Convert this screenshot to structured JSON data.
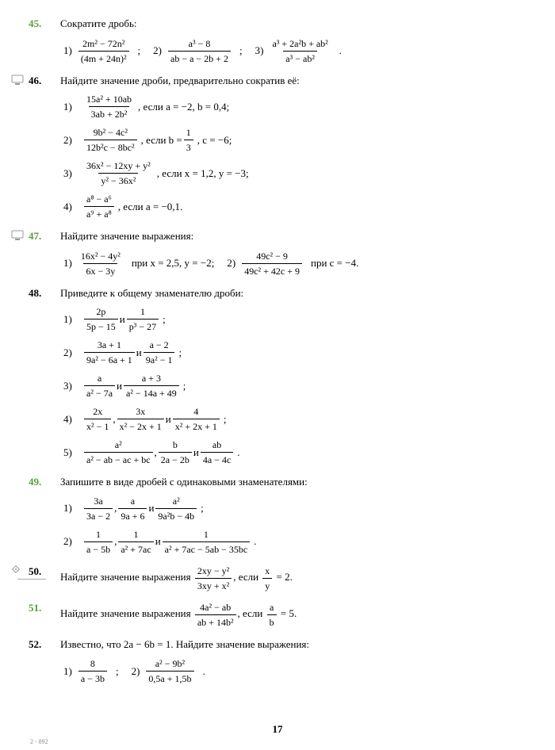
{
  "page_number": "17",
  "footer": "2 - 892",
  "problems": [
    {
      "num": "45.",
      "color": "green",
      "title": "Сократите дробь:",
      "inline": true,
      "subs": [
        {
          "idx": "1)",
          "num": "2m² − 72n²",
          "den": "(4m + 24n)²",
          "tail": ";"
        },
        {
          "idx": "2)",
          "num": "a³ − 8",
          "den": "ab − a − 2b + 2",
          "tail": ";"
        },
        {
          "idx": "3)",
          "num": "a³ + 2a²b + ab²",
          "den": "a³ − ab²",
          "tail": "."
        }
      ]
    },
    {
      "num": "46.",
      "color": "black",
      "monitor": true,
      "title": "Найдите значение дроби, предварительно сократив её:",
      "subs": [
        {
          "idx": "1)",
          "num": "15a² + 10ab",
          "den": "3ab + 2b²",
          "tail": ", если a = −2,  b = 0,4;"
        },
        {
          "idx": "2)",
          "num": "9b² − 4c²",
          "den": "12b²c − 8bc²",
          "tail": ", если  b = ",
          "frac2": {
            "num": "1",
            "den": "3"
          },
          "tail2": ",  c = −6;"
        },
        {
          "idx": "3)",
          "num": "36x² − 12xy + y²",
          "den": "y² − 36x²",
          "tail": ", если  x = 1,2,  y = −3;"
        },
        {
          "idx": "4)",
          "num": "a⁸ − a⁶",
          "den": "a⁹ + a⁸",
          "tail": ", если  a = −0,1."
        }
      ]
    },
    {
      "num": "47.",
      "color": "green",
      "monitor": true,
      "title": "Найдите значение выражения:",
      "inline": true,
      "subs": [
        {
          "idx": "1)",
          "num": "16x² − 4y²",
          "den": "6x − 3y",
          "tail": " при x = 2,5,  y = −2;"
        },
        {
          "idx": "2)",
          "num": "49c² − 9",
          "den": "49c² + 42c + 9",
          "tail": " при c = −4."
        }
      ]
    },
    {
      "num": "48.",
      "color": "black",
      "title": "Приведите к общему знаменателю дроби:",
      "subs": [
        {
          "idx": "1)",
          "fracs": [
            {
              "num": "2p",
              "den": "5p − 15"
            },
            {
              "num": "1",
              "den": "p³ − 27"
            }
          ],
          "joins": [
            "  и  "
          ],
          "tail": ";"
        },
        {
          "idx": "2)",
          "fracs": [
            {
              "num": "3a + 1",
              "den": "9a² − 6a + 1"
            },
            {
              "num": "a − 2",
              "den": "9a² − 1"
            }
          ],
          "joins": [
            "  и  "
          ],
          "tail": ";"
        },
        {
          "idx": "3)",
          "fracs": [
            {
              "num": "a",
              "den": "a² − 7a"
            },
            {
              "num": "a + 3",
              "den": "a² − 14a + 49"
            }
          ],
          "joins": [
            "  и  "
          ],
          "tail": ";"
        },
        {
          "idx": "4)",
          "fracs": [
            {
              "num": "2x",
              "den": "x² − 1"
            },
            {
              "num": "3x",
              "den": "x² − 2x + 1"
            },
            {
              "num": "4",
              "den": "x² + 2x + 1"
            }
          ],
          "joins": [
            ",  ",
            "  и  "
          ],
          "tail": ";"
        },
        {
          "idx": "5)",
          "fracs": [
            {
              "num": "a²",
              "den": "a² − ab − ac + bc"
            },
            {
              "num": "b",
              "den": "2a − 2b"
            },
            {
              "num": "ab",
              "den": "4a − 4c"
            }
          ],
          "joins": [
            ",  ",
            "  и  "
          ],
          "tail": "."
        }
      ]
    },
    {
      "num": "49.",
      "color": "green",
      "title": "Запишите в виде дробей с одинаковыми знаменателями:",
      "subs": [
        {
          "idx": "1)",
          "fracs": [
            {
              "num": "3a",
              "den": "3a − 2"
            },
            {
              "num": "a",
              "den": "9a + 6"
            },
            {
              "num": "a²",
              "den": "9a²b − 4b"
            }
          ],
          "joins": [
            ",  ",
            "  и  "
          ],
          "tail": ";"
        },
        {
          "idx": "2)",
          "fracs": [
            {
              "num": "1",
              "den": "a − 5b"
            },
            {
              "num": "1",
              "den": "a² + 7ac"
            },
            {
              "num": "1",
              "den": "a² + 7ac − 5ab − 35bc"
            }
          ],
          "joins": [
            ",  ",
            "  и  "
          ],
          "tail": "."
        }
      ]
    },
    {
      "num": "50.",
      "color": "black",
      "diamond": true,
      "title_pre": "Найдите значение выражения ",
      "frac": {
        "num": "2xy − y²",
        "den": "3xy + x²"
      },
      "title_mid": ", если ",
      "frac2": {
        "num": "x",
        "den": "y"
      },
      "title_post": " = 2."
    },
    {
      "num": "51.",
      "color": "green",
      "title_pre": "Найдите значение выражения ",
      "frac": {
        "num": "4a² − ab",
        "den": "ab + 14b²"
      },
      "title_mid": ", если ",
      "frac2": {
        "num": "a",
        "den": "b"
      },
      "title_post": " = 5."
    },
    {
      "num": "52.",
      "color": "black",
      "title": "Известно, что 2a − 6b = 1. Найдите значение выражения:",
      "inline": true,
      "subs": [
        {
          "idx": "1)",
          "num": "8",
          "den": "a − 3b",
          "tail": ";"
        },
        {
          "idx": "2)",
          "num": "a² − 9b²",
          "den": "0,5a + 1,5b",
          "tail": "."
        }
      ]
    }
  ]
}
